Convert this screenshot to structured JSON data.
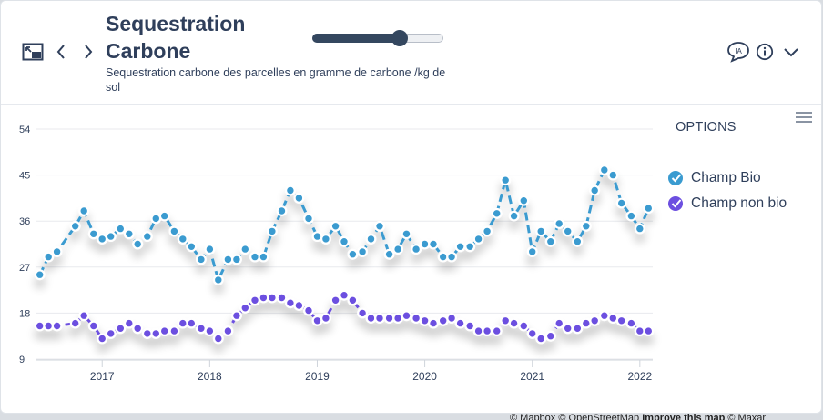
{
  "header": {
    "title": "Sequestration Carbone",
    "subtitle": "Sequestration carbone des parcelles en gramme de carbone /kg de sol",
    "slider_value": 0.67
  },
  "icons": {
    "expand": "expand-window-icon",
    "prev": "chevron-left-icon",
    "next": "chevron-right-icon",
    "ai_badge": "IA",
    "info": "info-icon",
    "collapse": "chevron-down-icon"
  },
  "options": {
    "label": "OPTIONS"
  },
  "attribution": {
    "text": "© Mapbox © OpenStreetMap ",
    "link": "Improve this map",
    "tail": " © Maxar"
  },
  "colors": {
    "series1": "#3a9bd0",
    "series2": "#6c4fe0",
    "grid": "#e8eaee",
    "text": "#2f3f5b"
  },
  "chart_data": {
    "type": "line",
    "title": "Sequestration Carbone",
    "ylim": [
      9,
      54
    ],
    "yticks": [
      "54",
      "45",
      "36",
      "27",
      "18",
      "9"
    ],
    "xticks": [
      {
        "label": "2017",
        "x": 2017.0
      },
      {
        "label": "2018",
        "x": 2018.0
      },
      {
        "label": "2019",
        "x": 2019.0
      },
      {
        "label": "2020",
        "x": 2020.0
      },
      {
        "label": "2021",
        "x": 2021.0
      },
      {
        "label": "2022",
        "x": 2022.0
      }
    ],
    "xlim": [
      2016.38,
      2022.12
    ],
    "series": [
      {
        "name": "Champ Bio",
        "color": "#3a9bd0",
        "x": [
          2016.42,
          2016.5,
          2016.58,
          2016.75,
          2016.83,
          2016.92,
          2017.0,
          2017.08,
          2017.17,
          2017.25,
          2017.33,
          2017.42,
          2017.5,
          2017.58,
          2017.67,
          2017.75,
          2017.83,
          2017.92,
          2018.0,
          2018.08,
          2018.17,
          2018.25,
          2018.33,
          2018.42,
          2018.5,
          2018.58,
          2018.67,
          2018.75,
          2018.83,
          2018.92,
          2019.0,
          2019.08,
          2019.17,
          2019.25,
          2019.33,
          2019.42,
          2019.5,
          2019.58,
          2019.67,
          2019.75,
          2019.83,
          2019.92,
          2020.0,
          2020.08,
          2020.17,
          2020.25,
          2020.33,
          2020.42,
          2020.5,
          2020.58,
          2020.67,
          2020.75,
          2020.83,
          2020.92,
          2021.0,
          2021.08,
          2021.17,
          2021.25,
          2021.33,
          2021.42,
          2021.5,
          2021.58,
          2021.67,
          2021.75,
          2021.83,
          2021.92,
          2022.0,
          2022.08
        ],
        "values": [
          25.5,
          29,
          30,
          35,
          38,
          33.5,
          32.5,
          33,
          34.5,
          33.5,
          31.5,
          33,
          36.5,
          37,
          34,
          32.5,
          31,
          28.5,
          30.5,
          24.5,
          28.5,
          28.5,
          30.5,
          29,
          29,
          34,
          38,
          42,
          40.5,
          36.5,
          33,
          32.5,
          35,
          32,
          29.5,
          30,
          32.5,
          35,
          29.5,
          30.5,
          33.5,
          30.5,
          31.5,
          31.5,
          29,
          29,
          31,
          31,
          32.5,
          34,
          37.5,
          44,
          37,
          40,
          30,
          34,
          32,
          35.5,
          34,
          32,
          35,
          42,
          46,
          45,
          39.5,
          37,
          34.5,
          38.5
        ]
      },
      {
        "name": "Champ non bio",
        "color": "#6c4fe0",
        "x": [
          2016.42,
          2016.5,
          2016.58,
          2016.75,
          2016.83,
          2016.92,
          2017.0,
          2017.08,
          2017.17,
          2017.25,
          2017.33,
          2017.42,
          2017.5,
          2017.58,
          2017.67,
          2017.75,
          2017.83,
          2017.92,
          2018.0,
          2018.08,
          2018.17,
          2018.25,
          2018.33,
          2018.42,
          2018.5,
          2018.58,
          2018.67,
          2018.75,
          2018.83,
          2018.92,
          2019.0,
          2019.08,
          2019.17,
          2019.25,
          2019.33,
          2019.42,
          2019.5,
          2019.58,
          2019.67,
          2019.75,
          2019.83,
          2019.92,
          2020.0,
          2020.08,
          2020.17,
          2020.25,
          2020.33,
          2020.42,
          2020.5,
          2020.58,
          2020.67,
          2020.75,
          2020.83,
          2020.92,
          2021.0,
          2021.08,
          2021.17,
          2021.25,
          2021.33,
          2021.42,
          2021.5,
          2021.58,
          2021.67,
          2021.75,
          2021.83,
          2021.92,
          2022.0,
          2022.08
        ],
        "values": [
          15.5,
          15.5,
          15.5,
          16,
          17.5,
          15.5,
          13,
          14,
          15,
          16,
          15,
          14,
          14,
          14.5,
          14.5,
          16,
          16,
          15,
          14.5,
          13,
          14.5,
          17.5,
          19,
          20.5,
          21,
          21,
          21,
          20,
          19.5,
          18.5,
          16.5,
          17,
          20.5,
          21.5,
          20.5,
          18,
          17,
          17,
          17,
          17,
          17.5,
          17,
          16.5,
          16,
          16.5,
          17,
          16,
          15.5,
          14.5,
          14.5,
          14.5,
          16.5,
          16,
          15.5,
          14,
          13,
          13.5,
          16,
          15,
          15,
          16,
          16.5,
          17.5,
          17,
          16.5,
          16,
          14.5,
          14.5
        ]
      }
    ]
  }
}
